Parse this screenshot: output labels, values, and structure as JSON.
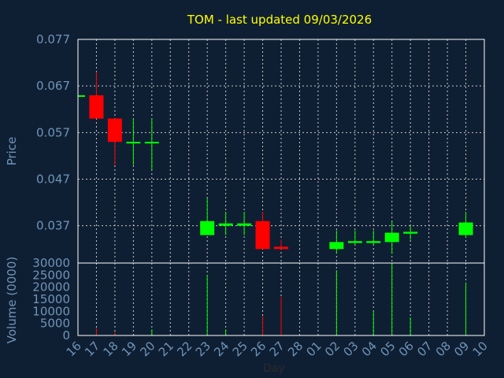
{
  "chart_data": {
    "type": "candlestick",
    "title": "TOM - last updated 09/03/2026",
    "xlabel": "Day",
    "price_ylabel": "Price",
    "volume_ylabel": "Volume (0000)",
    "days": [
      "16",
      "17",
      "18",
      "19",
      "20",
      "21",
      "22",
      "23",
      "24",
      "25",
      "26",
      "27",
      "28",
      "01",
      "02",
      "03",
      "04",
      "05",
      "06",
      "07",
      "08",
      "09",
      "10"
    ],
    "price_ylim": [
      0.029,
      0.077
    ],
    "price_ticks": [
      "0.077",
      "0.067",
      "0.057",
      "0.047",
      "0.037"
    ],
    "volume_ylim": [
      0,
      30000
    ],
    "volume_ticks": [
      "30000",
      "25000",
      "20000",
      "15000",
      "10000",
      "5000",
      "0"
    ],
    "up_color": "#00ff00",
    "down_color": "#ff0000",
    "candles": [
      {
        "day": "16",
        "open": 0.065,
        "high": 0.065,
        "low": 0.065,
        "close": 0.065,
        "volume": 0
      },
      {
        "day": "17",
        "open": 0.065,
        "high": 0.07,
        "low": 0.06,
        "close": 0.06,
        "volume": 3000
      },
      {
        "day": "18",
        "open": 0.06,
        "high": 0.06,
        "low": 0.05,
        "close": 0.055,
        "volume": 1500
      },
      {
        "day": "19",
        "open": 0.055,
        "high": 0.06,
        "low": 0.05,
        "close": 0.055,
        "volume": 0
      },
      {
        "day": "20",
        "open": 0.055,
        "high": 0.06,
        "low": 0.049,
        "close": 0.055,
        "volume": 2500
      },
      {
        "day": "23",
        "open": 0.035,
        "high": 0.043,
        "low": 0.035,
        "close": 0.038,
        "volume": 25000
      },
      {
        "day": "24",
        "open": 0.037,
        "high": 0.04,
        "low": 0.035,
        "close": 0.0375,
        "volume": 2500
      },
      {
        "day": "25",
        "open": 0.037,
        "high": 0.04,
        "low": 0.035,
        "close": 0.0375,
        "volume": 0
      },
      {
        "day": "26",
        "open": 0.038,
        "high": 0.04,
        "low": 0.032,
        "close": 0.032,
        "volume": 8000
      },
      {
        "day": "27",
        "open": 0.0325,
        "high": 0.034,
        "low": 0.032,
        "close": 0.032,
        "volume": 16000
      },
      {
        "day": "02",
        "open": 0.032,
        "high": 0.036,
        "low": 0.031,
        "close": 0.0335,
        "volume": 27000
      },
      {
        "day": "03",
        "open": 0.0333,
        "high": 0.036,
        "low": 0.033,
        "close": 0.0337,
        "volume": 0
      },
      {
        "day": "04",
        "open": 0.0333,
        "high": 0.036,
        "low": 0.033,
        "close": 0.0337,
        "volume": 10000
      },
      {
        "day": "05",
        "open": 0.0335,
        "high": 0.038,
        "low": 0.031,
        "close": 0.0355,
        "volume": 30000
      },
      {
        "day": "06",
        "open": 0.0353,
        "high": 0.037,
        "low": 0.034,
        "close": 0.0357,
        "volume": 7500
      },
      {
        "day": "09",
        "open": 0.035,
        "high": 0.04,
        "low": 0.0345,
        "close": 0.0377,
        "volume": 22000
      }
    ]
  }
}
